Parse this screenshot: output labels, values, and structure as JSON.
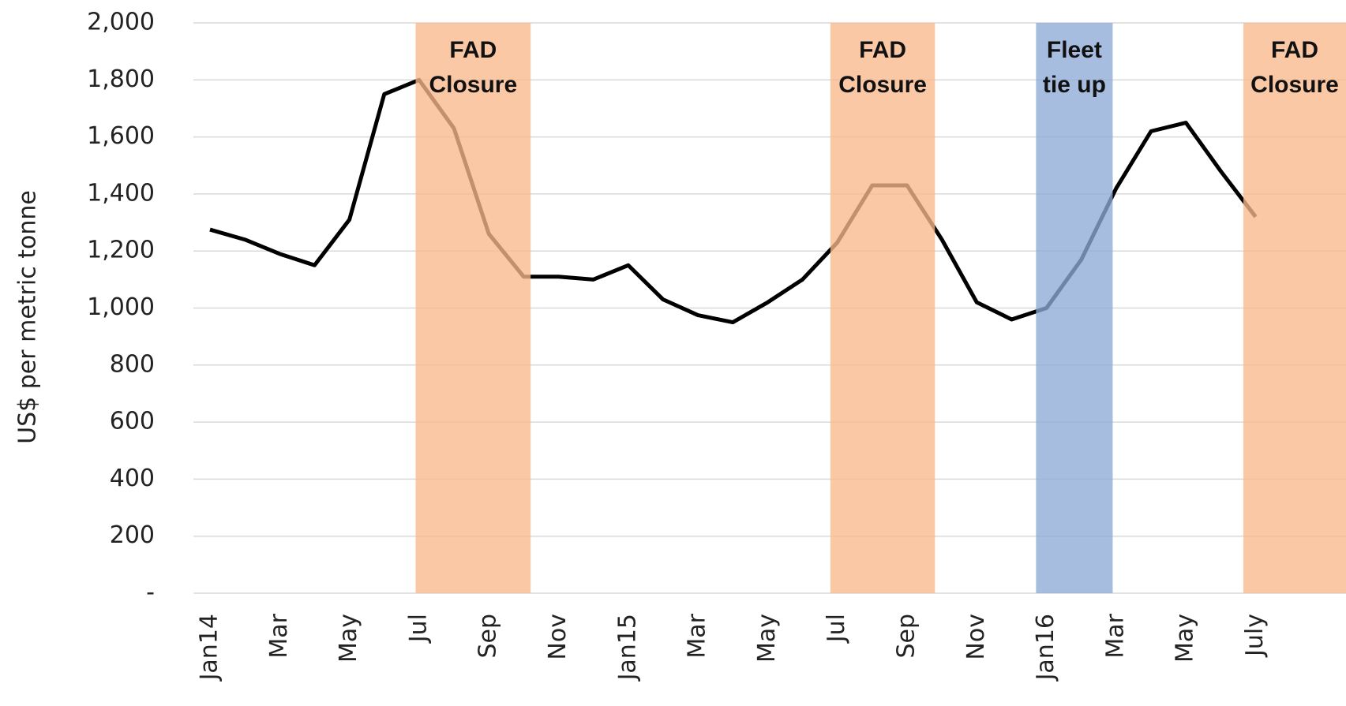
{
  "chart_data": {
    "type": "line",
    "y_label": "US$ per metric tonne",
    "categories": [
      "Jan14",
      null,
      "Mar",
      null,
      "May",
      null,
      "Jul",
      null,
      "Sep",
      null,
      "Nov",
      null,
      "Jan15",
      null,
      "Mar",
      null,
      "May",
      null,
      "Jul",
      null,
      "Sep",
      null,
      "Nov",
      null,
      "Jan16",
      null,
      "Mar",
      null,
      "May",
      null,
      "July"
    ],
    "series": [
      {
        "name": null,
        "color": "#000000",
        "values": [
          1275,
          1240,
          1190,
          1150,
          1310,
          1750,
          1800,
          1630,
          1260,
          1110,
          1110,
          1100,
          1150,
          1030,
          975,
          950,
          1020,
          1100,
          1230,
          1430,
          1430,
          1240,
          1020,
          960,
          1000,
          1170,
          1420,
          1620,
          1650,
          1480,
          1320
        ]
      }
    ],
    "ylim": [
      0,
      2000
    ],
    "yticks": [
      {
        "value": 0,
        "label": "-"
      },
      200,
      400,
      600,
      800,
      {
        "value": 1000,
        "label": "1,000"
      },
      {
        "value": 1200,
        "label": "1,200"
      },
      {
        "value": 1400,
        "label": "1,400"
      },
      {
        "value": 1600,
        "label": "1,600"
      },
      {
        "value": 1800,
        "label": "1,800"
      },
      {
        "value": 2000,
        "label": "2,000"
      }
    ],
    "grid": true,
    "shaded_regions": [
      {
        "label": [
          "FAD",
          "Closure"
        ],
        "start": 5.9,
        "end": 9.2,
        "color": "#f8b88c"
      },
      {
        "label": [
          "FAD",
          "Closure"
        ],
        "start": 17.8,
        "end": 20.8,
        "color": "#f8b88c"
      },
      {
        "label": [
          "Fleet",
          "tie up"
        ],
        "start": 23.7,
        "end": 25.9,
        "color": "#8eaad6"
      },
      {
        "label": [
          "FAD",
          "Closure"
        ],
        "start": 29.65,
        "end": 32.6,
        "color": "#f8b88c"
      }
    ]
  }
}
